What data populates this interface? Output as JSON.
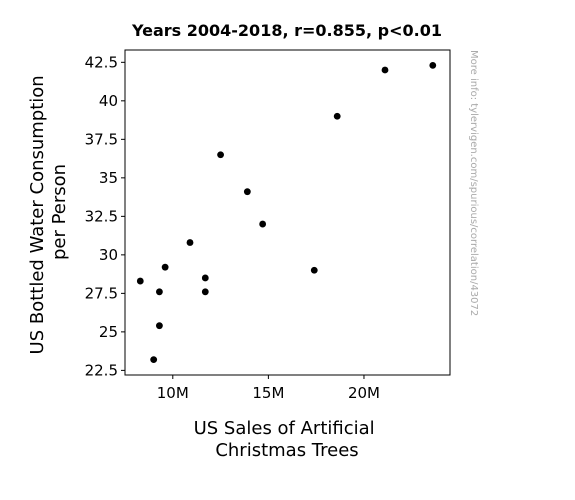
{
  "chart_data": {
    "type": "scatter",
    "title": "Years 2004-2018, r=0.855, p<0.01",
    "xlabel": [
      "US Sales of Artificial",
      "Christmas Trees"
    ],
    "ylabel": [
      "US Bottled Water Consumption",
      "per Person"
    ],
    "side_note": "More info: tylervigen.com/spurious/correlation/43072",
    "xlim": [
      7.5,
      24.5
    ],
    "ylim": [
      22.2,
      43.3
    ],
    "x_unit": "million",
    "x_ticks": [
      {
        "value": 10,
        "label": "10M"
      },
      {
        "value": 15,
        "label": "15M"
      },
      {
        "value": 20,
        "label": "20M"
      }
    ],
    "y_ticks": [
      {
        "value": 22.5,
        "label": "22.5"
      },
      {
        "value": 25,
        "label": "25"
      },
      {
        "value": 27.5,
        "label": "27.5"
      },
      {
        "value": 30,
        "label": "30"
      },
      {
        "value": 32.5,
        "label": "32.5"
      },
      {
        "value": 35,
        "label": "35"
      },
      {
        "value": 37.5,
        "label": "37.5"
      },
      {
        "value": 40,
        "label": "40"
      },
      {
        "value": 42.5,
        "label": "42.5"
      }
    ],
    "points": [
      {
        "x": 8.3,
        "y": 28.3
      },
      {
        "x": 9.0,
        "y": 23.2
      },
      {
        "x": 9.3,
        "y": 25.4
      },
      {
        "x": 9.3,
        "y": 27.6
      },
      {
        "x": 9.6,
        "y": 29.2
      },
      {
        "x": 10.9,
        "y": 30.8
      },
      {
        "x": 11.7,
        "y": 28.5
      },
      {
        "x": 11.7,
        "y": 27.6
      },
      {
        "x": 12.5,
        "y": 36.5
      },
      {
        "x": 13.9,
        "y": 34.1
      },
      {
        "x": 14.7,
        "y": 32.0
      },
      {
        "x": 17.4,
        "y": 29.0
      },
      {
        "x": 18.6,
        "y": 39.0
      },
      {
        "x": 21.1,
        "y": 42.0
      },
      {
        "x": 23.6,
        "y": 42.3
      }
    ],
    "marker_color": "#000000",
    "grid": false,
    "legend": "none"
  }
}
